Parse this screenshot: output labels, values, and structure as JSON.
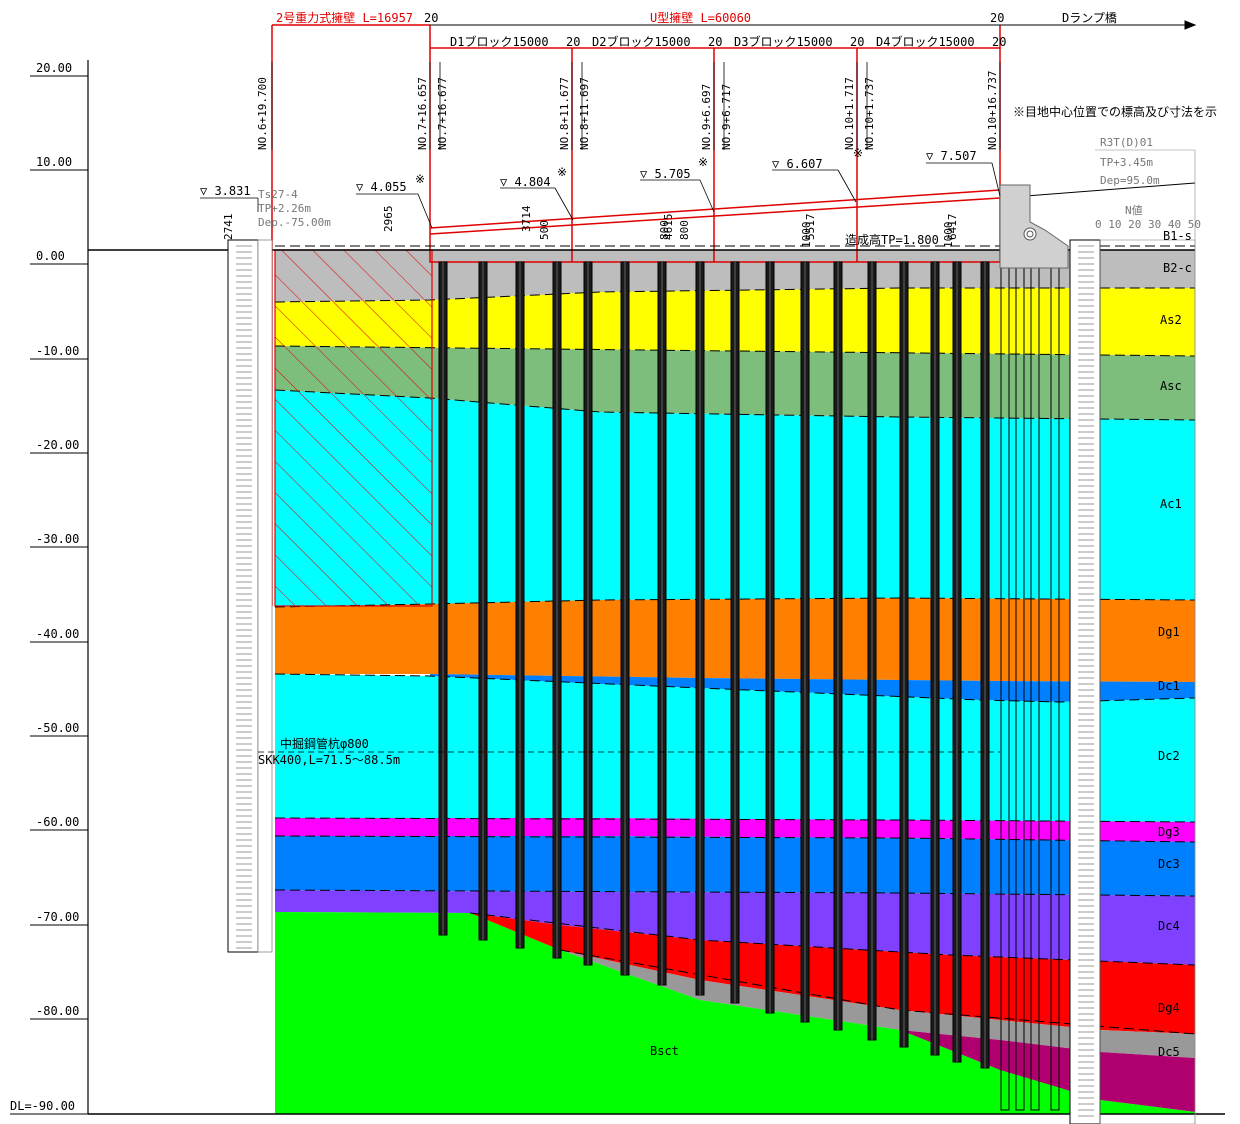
{
  "elevation_scale": {
    "labels": [
      "20.00",
      "10.00",
      "0.00",
      "-10.00",
      "-20.00",
      "-30.00",
      "-40.00",
      "-50.00",
      "-60.00",
      "-70.00",
      "-80.00"
    ],
    "datum": "DL=-90.00"
  },
  "top_dimensions": {
    "gravity_wall": "2号重力式擁壁 L=16957",
    "u_wall": "U型擁壁 L=60060",
    "ramp": "Dランプ橋",
    "gap_labels": [
      "20",
      "20",
      "20",
      "20",
      "20",
      "20"
    ],
    "blocks": [
      "D1ブロック15000",
      "D2ブロック15000",
      "D3ブロック15000",
      "D4ブロック15000"
    ]
  },
  "stations": [
    "NO.6+19.700",
    "NO.7+16.657",
    "NO.7+16.677",
    "NO.8+11.677",
    "NO.8+11.697",
    "NO.9+6.697",
    "NO.9+6.717",
    "NO.10+1.717",
    "NO.10+1.737",
    "NO.10+16.737"
  ],
  "levels": [
    "▽ 3.831",
    "▽ 4.055",
    "▽ 4.804",
    "▽ 5.705",
    "▽ 6.607",
    "▽ 7.507"
  ],
  "level_marks": [
    "※",
    "※",
    "※",
    "※"
  ],
  "heights": [
    "2741",
    "2965",
    "3714",
    "4615",
    "5517",
    "6417"
  ],
  "small_dims": [
    "500",
    "800",
    "800",
    "1000",
    "1000"
  ],
  "boring_left": {
    "name": "Ts27-4",
    "tp": "TP+2.26m",
    "dep": "Dep.-75.00m"
  },
  "boring_right": {
    "name": "R3T(D)01",
    "tp": "TP+3.45m",
    "dep": "Dep=95.0m",
    "n_value": "N値",
    "scale": "0 10 20 30 40 50"
  },
  "note": "※目地中心位置での標高及び寸法を示",
  "ground_level": "造成高TP=1.800",
  "pile": {
    "line1": "中掘鋼管杭φ800",
    "line2": "SKK400,L=71.5～88.5m"
  },
  "layers": [
    "B1-s",
    "B2-c",
    "As2",
    "Asc",
    "Ac1",
    "Dg1",
    "Dc1",
    "Dc2",
    "Dg3",
    "Dc3",
    "Dc4",
    "Dg4",
    "Dc5",
    "Bsct"
  ],
  "colors": {
    "B2-c": "#bdbdbd",
    "As2": "#ffff00",
    "Asc": "#7dbe7d",
    "Ac1": "#00ffff",
    "Dg1": "#ff8000",
    "Dc1": "#0080ff",
    "Dc2": "#00ffff",
    "Dg3": "#ff00ff",
    "Dc3": "#0080ff",
    "Dc4": "#8040ff",
    "Dg4": "#ff0000",
    "Dc5": "#999999",
    "purple_bottom": "#b0006f",
    "Bsct": "#00ff00",
    "red_line": "#e00000"
  }
}
